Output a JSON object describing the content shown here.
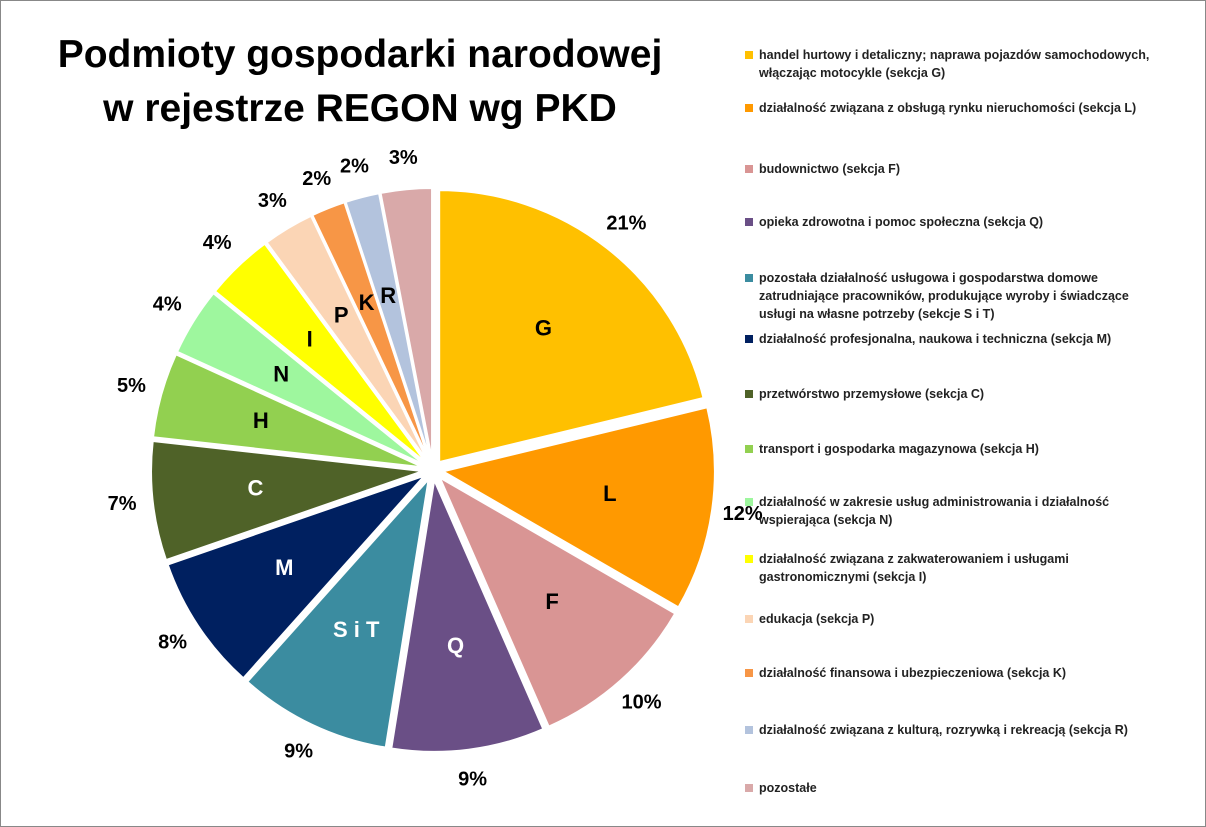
{
  "chart_data": {
    "type": "pie",
    "title": [
      "Podmioty gospodarki narodowej",
      "w rejestrze REGON wg PKD"
    ],
    "categories": [
      "handel hurtowy i detaliczny; naprawa pojazdów samochodowych, włączając motocykle (sekcja G)",
      "działalność związana z obsługą rynku nieruchomości (sekcja L)",
      "budownictwo (sekcja F)",
      "opieka zdrowotna i pomoc społeczna (sekcja Q)",
      "pozostała działalność usługowa i gospodarstwa domowe zatrudniające pracowników, produkujące wyroby i świadczące usługi na własne potrzeby (sekcje S i T)",
      "działalność profesjonalna, naukowa i techniczna (sekcja M)",
      "przetwórstwo przemysłowe (sekcja C)",
      "transport i gospodarka magazynowa  (sekcja H)",
      "działalność w zakresie usług administrowania i działalność wspierająca (sekcja N)",
      "działalność związana z zakwaterowaniem i usługami gastronomicznymi  (sekcja I)",
      "edukacja (sekcja P)",
      "działalność finansowa i ubezpieczeniowa (sekcja K)",
      "działalność związana z kulturą, rozrywką i rekreacją (sekcja R)",
      "pozostałe"
    ],
    "slice_labels": [
      "G",
      "L",
      "F",
      "Q",
      "S i T",
      "M",
      "C",
      "H",
      "N",
      "I",
      "P",
      "K",
      "R",
      null
    ],
    "values": [
      21,
      12,
      10,
      9,
      9,
      8,
      7,
      5,
      4,
      4,
      3,
      2,
      2,
      3
    ],
    "value_labels": [
      "21%",
      "12%",
      "10%",
      "9%",
      "9%",
      "8%",
      "7%",
      "5%",
      "4%",
      "4%",
      "3%",
      "2%",
      "2%",
      "3%"
    ],
    "colors": [
      "#ffc000",
      "#ff9900",
      "#d99594",
      "#6a4f86",
      "#3b8ca0",
      "#002060",
      "#4f6228",
      "#92d050",
      "#9ef79e",
      "#ffff00",
      "#fbd5b5",
      "#f79646",
      "#b3c3dd",
      "#d9a9a9"
    ],
    "legend": "right"
  }
}
